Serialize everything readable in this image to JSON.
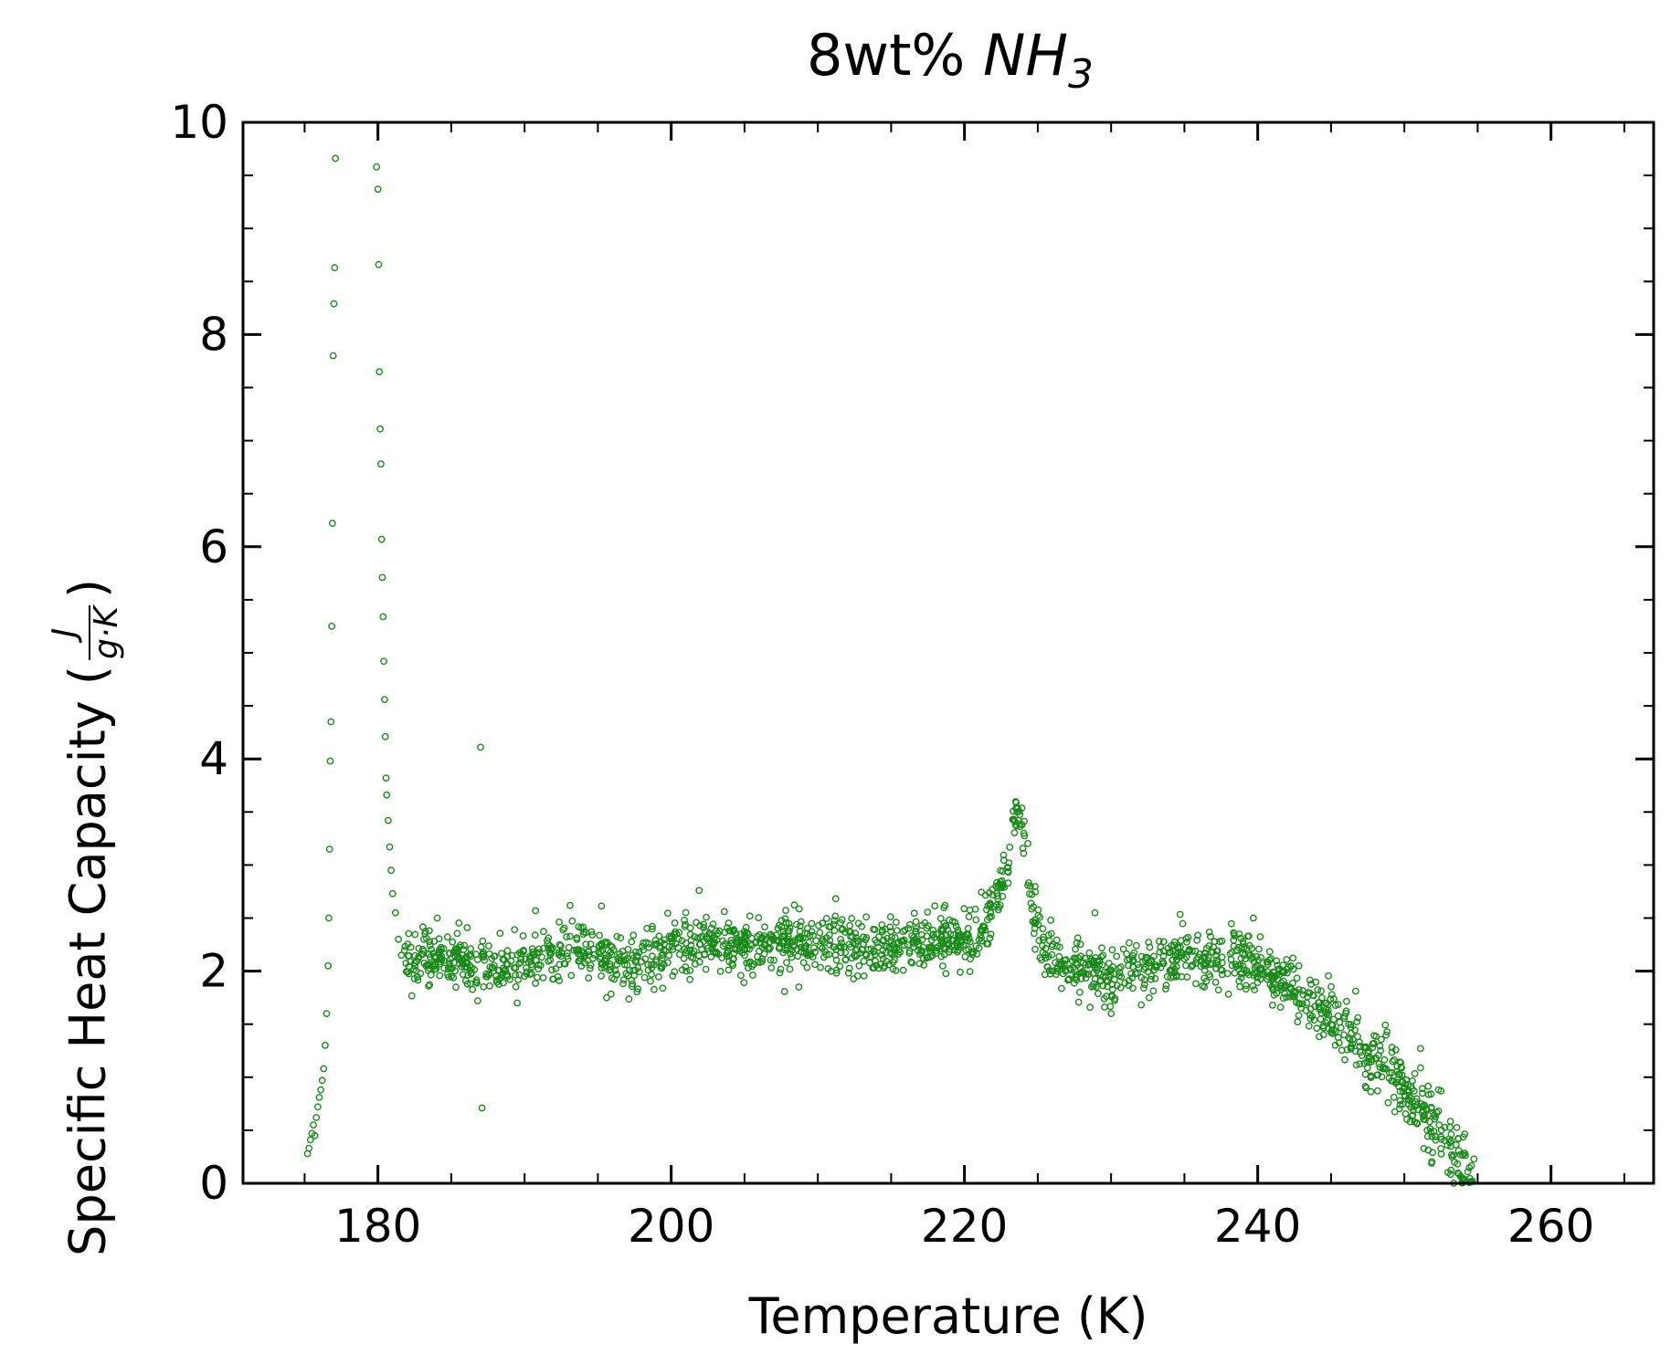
{
  "chart_data": {
    "type": "scatter",
    "title": {
      "prefix": "8wt% ",
      "formula_main": "NH",
      "formula_sub": "3"
    },
    "xlabel": "Temperature (K)",
    "ylabel": {
      "text": "Specific Heat Capacity (",
      "frac_num": "J",
      "frac_den": "g·K",
      "close": ")"
    },
    "xlim": [
      170.8,
      267.0
    ],
    "ylim": [
      0,
      10
    ],
    "x_ticks": [
      {
        "value": 180,
        "label": "180"
      },
      {
        "value": 200,
        "label": "200"
      },
      {
        "value": 220,
        "label": "220"
      },
      {
        "value": 240,
        "label": "240"
      },
      {
        "value": 260,
        "label": "260"
      }
    ],
    "y_ticks": [
      {
        "value": 0,
        "label": "0"
      },
      {
        "value": 2,
        "label": "2"
      },
      {
        "value": 4,
        "label": "4"
      },
      {
        "value": 6,
        "label": "6"
      },
      {
        "value": 8,
        "label": "8"
      },
      {
        "value": 10,
        "label": "10"
      }
    ],
    "x_minor_step": 5,
    "y_minor_step": 0.5,
    "marker": "open-circle",
    "color": "#1a8a1a",
    "grid": false,
    "legend": "none",
    "series": [
      {
        "points": [
          [
            175.2,
            0.28
          ],
          [
            175.3,
            0.33
          ],
          [
            175.4,
            0.41
          ],
          [
            175.5,
            0.47
          ],
          [
            175.6,
            0.55
          ],
          [
            175.7,
            0.45
          ],
          [
            175.8,
            0.62
          ],
          [
            175.9,
            0.72
          ],
          [
            176.0,
            0.81
          ],
          [
            176.1,
            0.88
          ],
          [
            176.2,
            0.97
          ],
          [
            176.3,
            1.08
          ],
          [
            176.4,
            1.3
          ],
          [
            176.5,
            1.6
          ],
          [
            176.6,
            2.05
          ],
          [
            176.65,
            2.5
          ],
          [
            176.7,
            3.15
          ],
          [
            176.75,
            3.98
          ],
          [
            176.8,
            4.35
          ],
          [
            176.85,
            5.25
          ],
          [
            176.9,
            6.22
          ],
          [
            176.95,
            7.8
          ],
          [
            177.0,
            8.29
          ],
          [
            177.05,
            8.63
          ],
          [
            177.1,
            9.66
          ],
          [
            179.9,
            9.58
          ],
          [
            180.0,
            9.37
          ],
          [
            180.05,
            8.66
          ],
          [
            180.1,
            7.65
          ],
          [
            180.15,
            7.11
          ],
          [
            180.2,
            6.78
          ],
          [
            180.25,
            6.07
          ],
          [
            180.3,
            5.71
          ],
          [
            180.35,
            5.34
          ],
          [
            180.4,
            4.92
          ],
          [
            180.45,
            4.56
          ],
          [
            180.5,
            4.21
          ],
          [
            180.55,
            3.82
          ],
          [
            180.6,
            3.66
          ],
          [
            180.7,
            3.42
          ],
          [
            180.8,
            3.17
          ],
          [
            180.9,
            2.95
          ],
          [
            181.0,
            2.73
          ],
          [
            181.2,
            2.55
          ],
          [
            181.4,
            2.3
          ],
          [
            181.6,
            2.15
          ],
          [
            187.0,
            4.11
          ],
          [
            187.1,
            0.71
          ]
        ],
        "trend": [
          [
            181.8,
            2.1
          ],
          [
            185,
            2.12
          ],
          [
            188,
            2.02
          ],
          [
            191,
            2.15
          ],
          [
            194,
            2.18
          ],
          [
            197,
            2.1
          ],
          [
            200,
            2.2
          ],
          [
            203,
            2.24
          ],
          [
            206,
            2.22
          ],
          [
            209,
            2.27
          ],
          [
            212,
            2.24
          ],
          [
            215,
            2.22
          ],
          [
            218,
            2.3
          ],
          [
            220.5,
            2.3
          ],
          [
            221.5,
            2.42
          ],
          [
            222.3,
            2.7
          ],
          [
            223.0,
            3.05
          ],
          [
            223.6,
            3.55
          ],
          [
            224.0,
            3.35
          ],
          [
            224.4,
            2.85
          ],
          [
            224.9,
            2.45
          ],
          [
            225.4,
            2.15
          ],
          [
            227,
            2.03
          ],
          [
            229,
            2.02
          ],
          [
            230,
            1.88
          ],
          [
            231,
            1.98
          ],
          [
            233,
            2.08
          ],
          [
            235,
            2.16
          ],
          [
            237,
            2.16
          ],
          [
            239,
            2.1
          ],
          [
            240,
            2.05
          ],
          [
            241,
            1.95
          ],
          [
            242,
            1.85
          ],
          [
            243,
            1.75
          ],
          [
            244,
            1.65
          ],
          [
            245,
            1.55
          ],
          [
            246,
            1.42
          ],
          [
            247,
            1.3
          ],
          [
            248,
            1.16
          ],
          [
            249,
            1.02
          ],
          [
            250,
            0.88
          ],
          [
            251,
            0.7
          ],
          [
            252,
            0.52
          ],
          [
            253,
            0.32
          ],
          [
            254,
            0.12
          ],
          [
            254.8,
            0.0
          ]
        ],
        "scatter_sigma": 0.13,
        "points_per_kelvin": 27,
        "outliers": [
          [
            183.5,
            2.38
          ],
          [
            186.8,
            1.72
          ],
          [
            189.5,
            1.7
          ],
          [
            193.1,
            2.62
          ],
          [
            195.6,
            1.75
          ],
          [
            201.9,
            2.76
          ],
          [
            208.7,
            1.85
          ],
          [
            228.9,
            2.55
          ],
          [
            230.0,
            1.6
          ],
          [
            232.6,
            1.75
          ],
          [
            239.7,
            2.5
          ],
          [
            242.8,
            2.05
          ],
          [
            245.0,
            1.42
          ],
          [
            247.4,
            0.9
          ],
          [
            251.1,
            1.27
          ],
          [
            252.5,
            0.87
          ]
        ]
      }
    ]
  }
}
